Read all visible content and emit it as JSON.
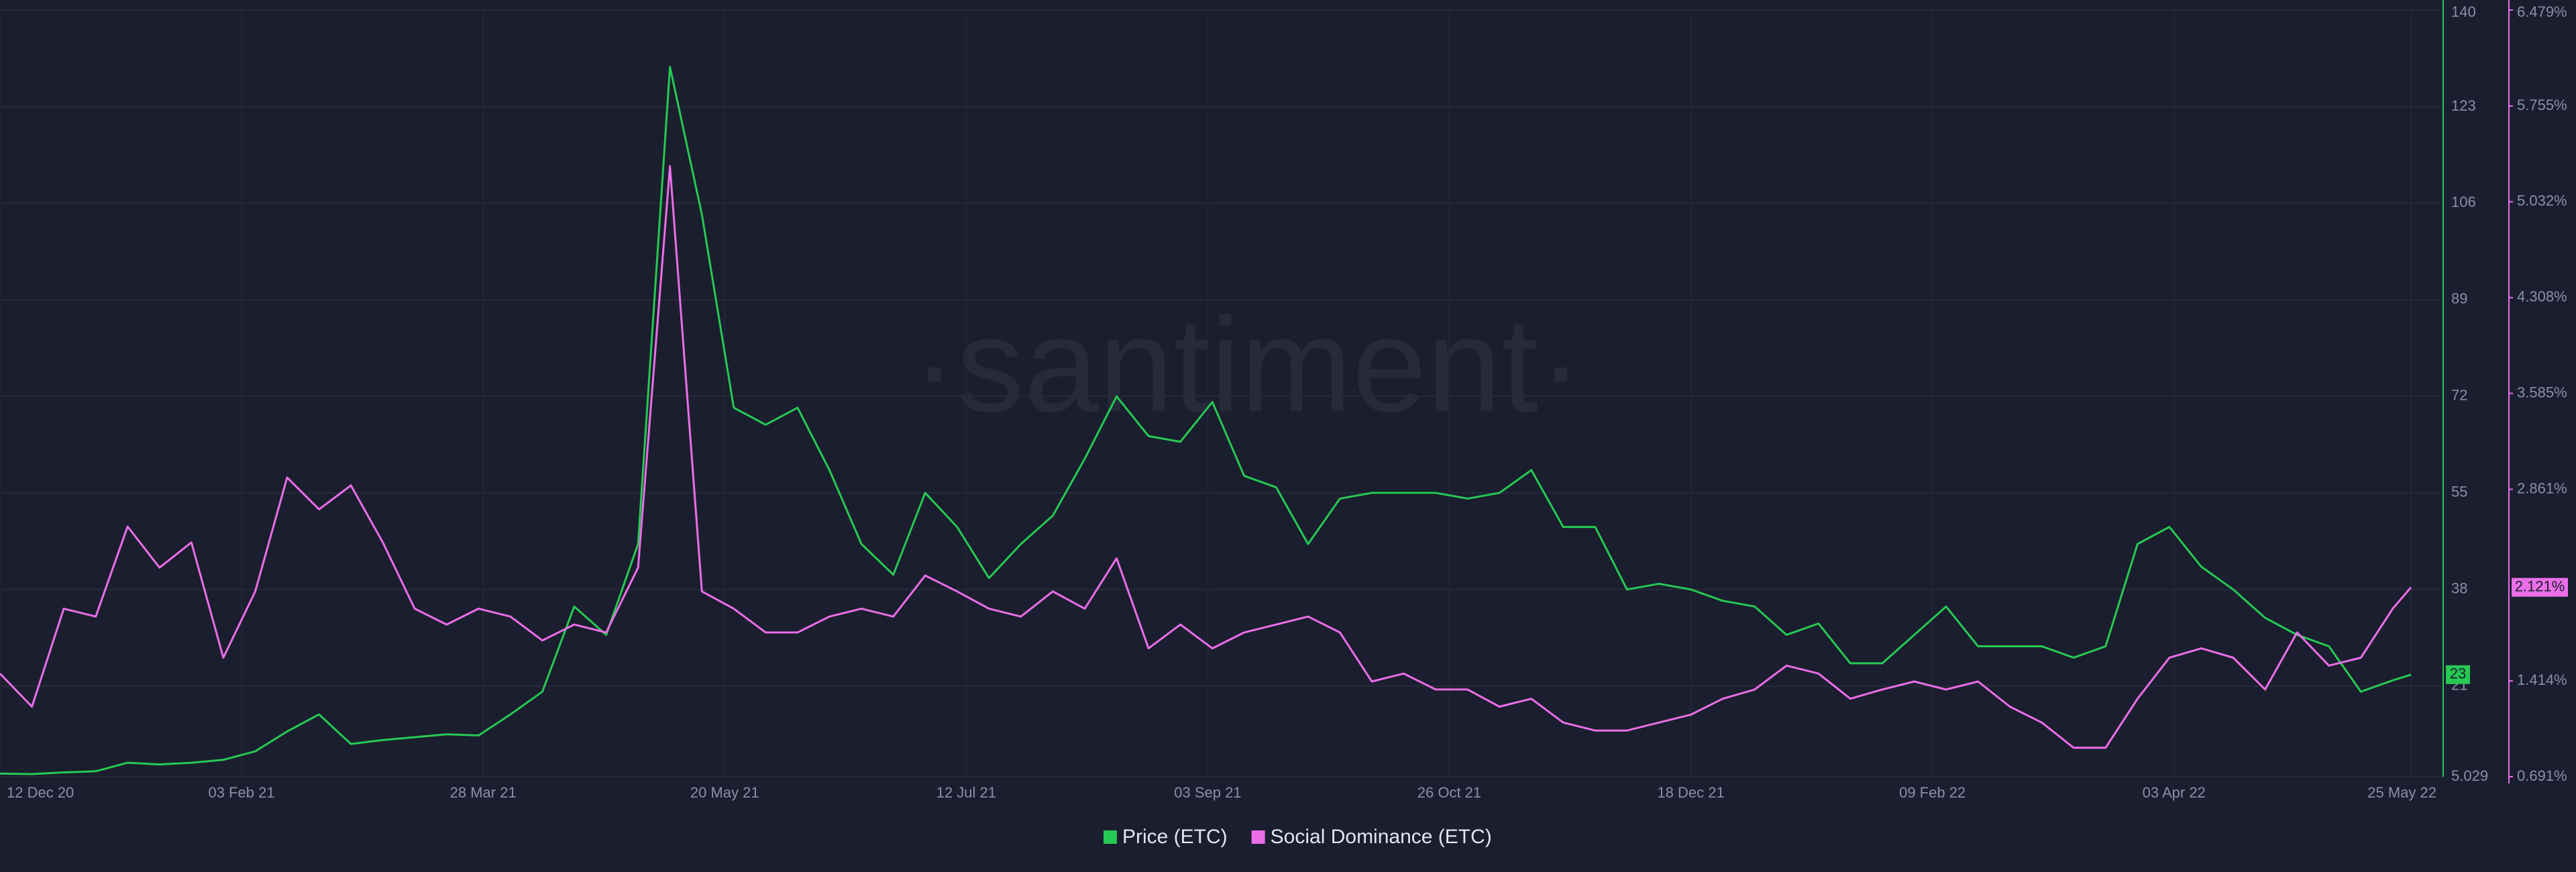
{
  "chart_data": {
    "type": "line",
    "watermark": "·santiment·",
    "x": [
      "2020-12-12",
      "2020-12-19",
      "2020-12-26",
      "2021-01-02",
      "2021-01-09",
      "2021-01-16",
      "2021-01-23",
      "2021-01-30",
      "2021-02-06",
      "2021-02-13",
      "2021-02-20",
      "2021-02-27",
      "2021-03-06",
      "2021-03-13",
      "2021-03-20",
      "2021-03-27",
      "2021-04-03",
      "2021-04-10",
      "2021-04-17",
      "2021-04-24",
      "2021-05-01",
      "2021-05-08",
      "2021-05-15",
      "2021-05-22",
      "2021-05-29",
      "2021-06-05",
      "2021-06-12",
      "2021-06-19",
      "2021-06-26",
      "2021-07-03",
      "2021-07-10",
      "2021-07-17",
      "2021-07-24",
      "2021-07-31",
      "2021-08-07",
      "2021-08-14",
      "2021-08-21",
      "2021-08-28",
      "2021-09-04",
      "2021-09-11",
      "2021-09-18",
      "2021-09-25",
      "2021-10-02",
      "2021-10-09",
      "2021-10-16",
      "2021-10-23",
      "2021-10-30",
      "2021-11-06",
      "2021-11-13",
      "2021-11-20",
      "2021-11-27",
      "2021-12-04",
      "2021-12-11",
      "2021-12-18",
      "2021-12-25",
      "2022-01-01",
      "2022-01-08",
      "2022-01-15",
      "2022-01-22",
      "2022-01-29",
      "2022-02-05",
      "2022-02-12",
      "2022-02-19",
      "2022-02-26",
      "2022-03-05",
      "2022-03-12",
      "2022-03-19",
      "2022-03-26",
      "2022-04-02",
      "2022-04-09",
      "2022-04-16",
      "2022-04-23",
      "2022-04-30",
      "2022-05-07",
      "2022-05-14",
      "2022-05-21",
      "2022-05-25"
    ],
    "xlim": [
      "2020-12-12",
      "2022-05-25"
    ],
    "xticks": [
      {
        "value": "2020-12-12",
        "label": "12 Dec 20"
      },
      {
        "value": "2021-02-03",
        "label": "03 Feb 21"
      },
      {
        "value": "2021-03-28",
        "label": "28 Mar 21"
      },
      {
        "value": "2021-05-20",
        "label": "20 May 21"
      },
      {
        "value": "2021-07-12",
        "label": "12 Jul 21"
      },
      {
        "value": "2021-09-03",
        "label": "03 Sep 21"
      },
      {
        "value": "2021-10-26",
        "label": "26 Oct 21"
      },
      {
        "value": "2021-12-18",
        "label": "18 Dec 21"
      },
      {
        "value": "2022-02-09",
        "label": "09 Feb 22"
      },
      {
        "value": "2022-04-03",
        "label": "03 Apr 22"
      },
      {
        "value": "2022-05-25",
        "label": "25 May 22"
      }
    ],
    "ylim": [
      5.029,
      140
    ],
    "yticks": [
      5.029,
      21,
      38,
      55,
      72,
      89,
      106,
      123,
      140
    ],
    "y2lim": [
      0.691,
      6.479
    ],
    "y2ticks": [
      {
        "value": 0.691,
        "label": "0.691%"
      },
      {
        "value": 1.414,
        "label": "1.414%"
      },
      {
        "value": 2.861,
        "label": "2.861%"
      },
      {
        "value": 3.585,
        "label": "3.585%"
      },
      {
        "value": 4.308,
        "label": "4.308%"
      },
      {
        "value": 5.032,
        "label": "5.032%"
      },
      {
        "value": 5.755,
        "label": "5.755%"
      },
      {
        "value": 6.479,
        "label": "6.479%"
      }
    ],
    "grid": true,
    "series": [
      {
        "name": "Price (ETC)",
        "color": "#26c953",
        "axis": "y",
        "last_value_label": "23",
        "values": [
          5.6,
          5.5,
          5.8,
          6.0,
          7.5,
          7.2,
          7.5,
          8.0,
          9.5,
          13,
          16,
          10.8,
          11.5,
          12,
          12.5,
          12.3,
          16,
          20,
          35,
          30,
          46,
          130,
          104,
          70,
          67,
          70,
          59,
          46,
          40.6,
          55,
          49,
          40,
          46,
          51,
          61,
          72,
          65,
          64,
          71,
          58,
          56,
          46,
          54,
          55,
          55,
          55,
          54,
          55,
          59,
          49,
          49,
          38,
          39,
          38,
          36,
          35,
          30,
          32,
          25,
          25,
          30,
          35,
          28,
          28,
          28,
          26,
          28,
          46,
          49,
          42,
          38,
          33,
          30,
          28,
          20,
          22,
          23
        ]
      },
      {
        "name": "Social Dominance (ETC)",
        "color": "#ea6ee8",
        "axis": "y2",
        "last_value_label": "2.121%",
        "values": [
          1.47,
          1.22,
          1.96,
          1.9,
          2.58,
          2.27,
          2.46,
          1.59,
          2.09,
          2.95,
          2.71,
          2.89,
          2.46,
          1.96,
          1.84,
          1.96,
          1.9,
          1.72,
          1.84,
          1.78,
          2.27,
          5.3,
          2.09,
          1.96,
          1.78,
          1.78,
          1.9,
          1.96,
          1.9,
          2.21,
          2.09,
          1.96,
          1.9,
          2.09,
          1.96,
          2.34,
          1.66,
          1.84,
          1.66,
          1.78,
          1.84,
          1.9,
          1.78,
          1.41,
          1.47,
          1.35,
          1.35,
          1.22,
          1.28,
          1.1,
          1.04,
          1.04,
          1.1,
          1.16,
          1.28,
          1.35,
          1.53,
          1.47,
          1.28,
          1.35,
          1.41,
          1.35,
          1.41,
          1.22,
          1.1,
          0.91,
          0.91,
          1.28,
          1.59,
          1.66,
          1.59,
          1.35,
          1.78,
          1.53,
          1.59,
          1.96,
          2.121
        ]
      }
    ]
  }
}
